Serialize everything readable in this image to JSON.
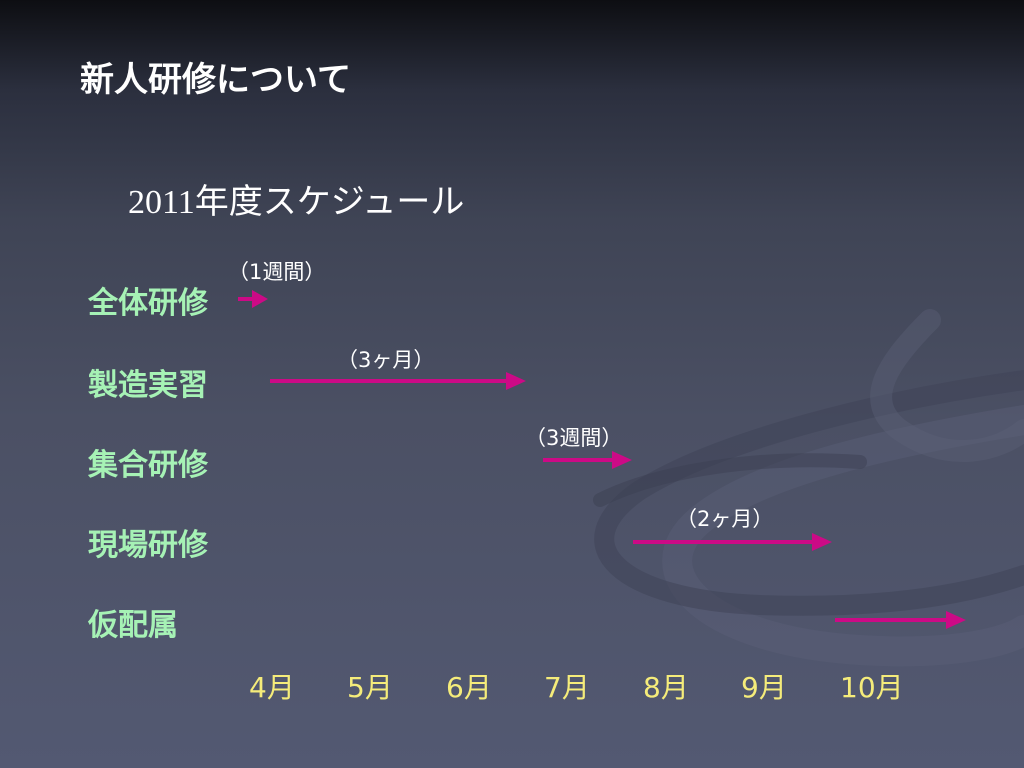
{
  "slide": {
    "title": "新人研修について",
    "subtitle_year": "2011",
    "subtitle_rest": "年度スケジュール"
  },
  "colors": {
    "label_green": "#a6f2b5",
    "arrow_magenta": "#cc0a86",
    "month_yellow": "#f5ec7a",
    "text_white": "#ffffff"
  },
  "schedule": {
    "rows": [
      {
        "label": "全体研修",
        "duration": "（1週間）"
      },
      {
        "label": "製造実習",
        "duration": "（3ヶ月）"
      },
      {
        "label": "集合研修",
        "duration": "（3週間）"
      },
      {
        "label": "現場研修",
        "duration": "（2ヶ月）"
      },
      {
        "label": "仮配属",
        "duration": ""
      }
    ],
    "months": [
      "4月",
      "5月",
      "6月",
      "7月",
      "8月",
      "9月",
      "10月"
    ]
  }
}
